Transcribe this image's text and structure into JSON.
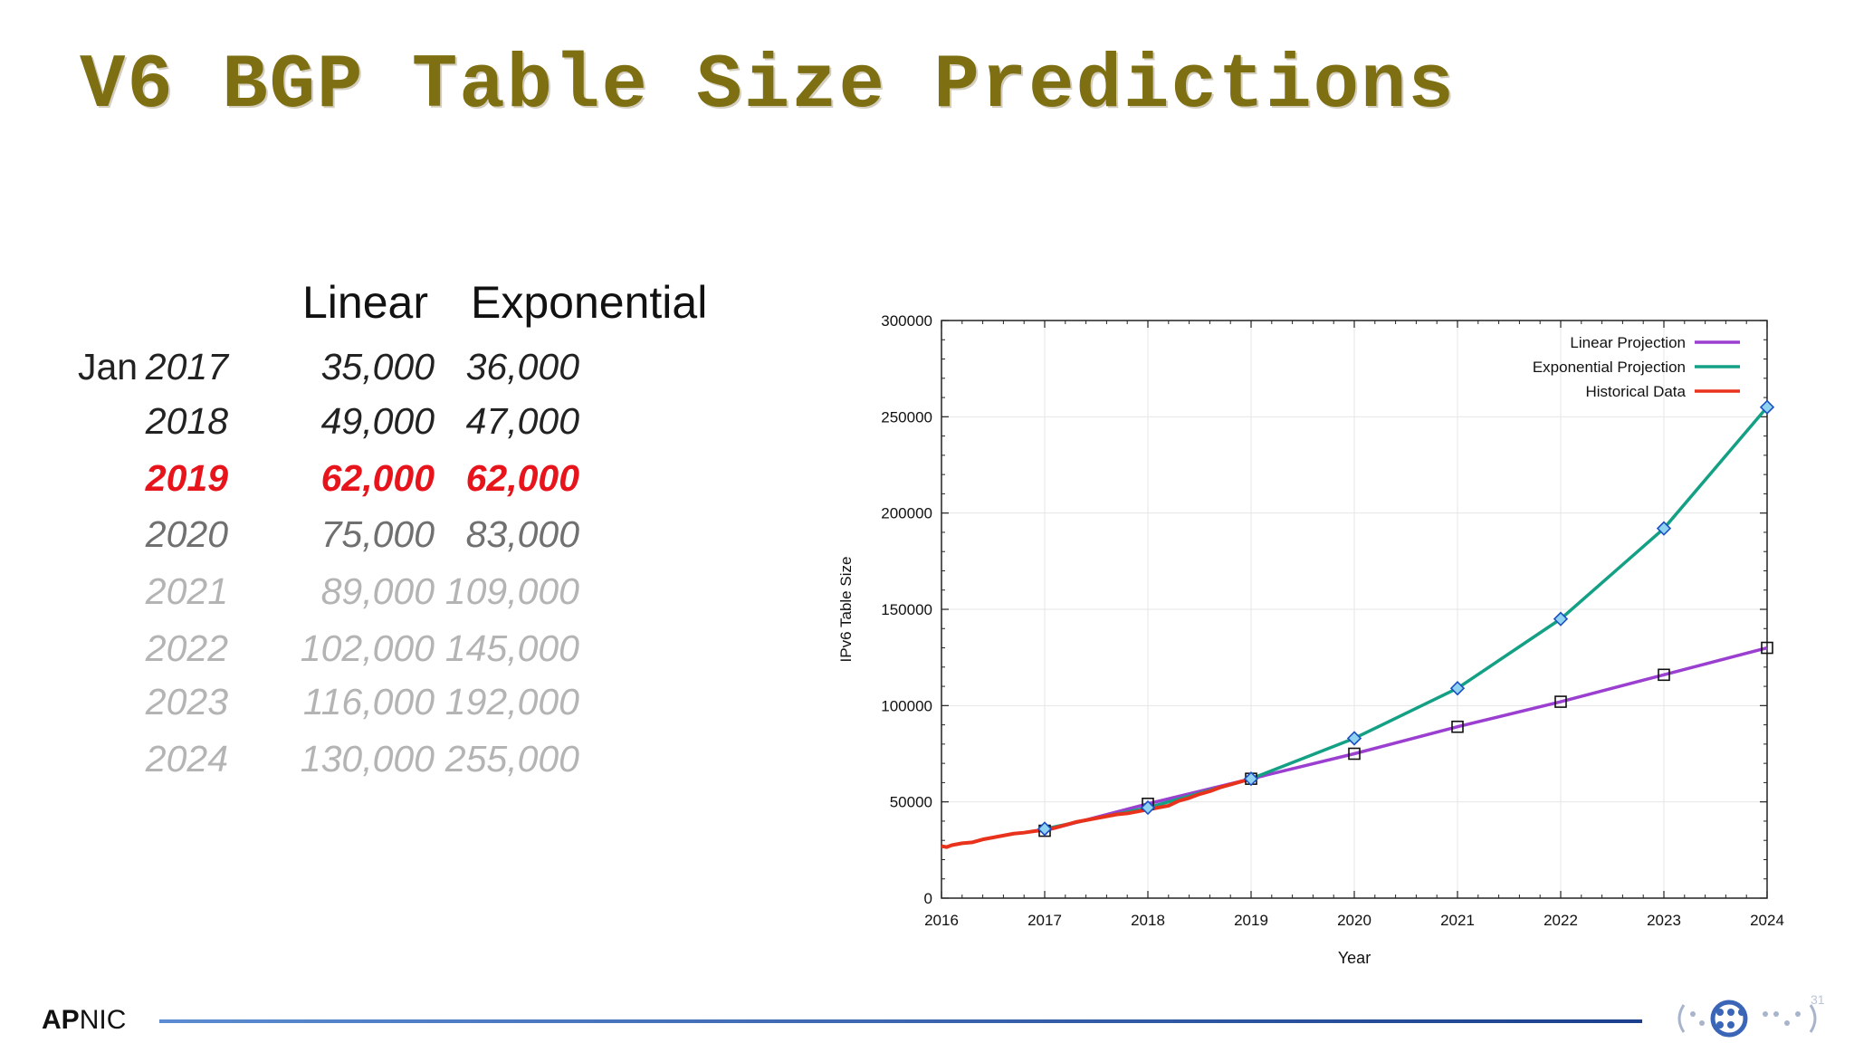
{
  "title": "V6 BGP Table Size Predictions",
  "table": {
    "col_linear": "Linear",
    "col_exponential": "Exponential",
    "first_prefix": "Jan",
    "rows": [
      {
        "year": "2017",
        "linear": "35,000",
        "exponential": "36,000",
        "color": "#222222",
        "bold": false
      },
      {
        "year": "2018",
        "linear": "49,000",
        "exponential": "47,000",
        "color": "#222222",
        "bold": false
      },
      {
        "year": "2019",
        "linear": "62,000",
        "exponential": "62,000",
        "color": "#e8141c",
        "bold": true
      },
      {
        "year": "2020",
        "linear": "75,000",
        "exponential": "83,000",
        "color": "#707070",
        "bold": false
      },
      {
        "year": "2021",
        "linear": "89,000",
        "exponential": "109,000",
        "color": "#b4b4b4",
        "bold": false
      },
      {
        "year": "2022",
        "linear": "102,000",
        "exponential": "145,000",
        "color": "#b4b4b4",
        "bold": false
      },
      {
        "year": "2023",
        "linear": "116,000",
        "exponential": "192,000",
        "color": "#b4b4b4",
        "bold": false
      },
      {
        "year": "2024",
        "linear": "130,000",
        "exponential": "255,000",
        "color": "#b4b4b4",
        "bold": false
      }
    ]
  },
  "chart_data": {
    "type": "line",
    "xlabel": "Year",
    "ylabel": "IPv6 Table Size",
    "xlim": [
      2016,
      2024
    ],
    "ylim": [
      0,
      300000
    ],
    "xticks": [
      "2016",
      "2017",
      "2018",
      "2019",
      "2020",
      "2021",
      "2022",
      "2023",
      "2024"
    ],
    "yticks": [
      "0",
      "50000",
      "100000",
      "150000",
      "200000",
      "250000",
      "300000"
    ],
    "grid": true,
    "legend_position": "top-right",
    "series": [
      {
        "name": "Linear Projection",
        "color": "#9b3fd0",
        "marker": "square",
        "x": [
          2017,
          2018,
          2019,
          2020,
          2021,
          2022,
          2023,
          2024
        ],
        "y": [
          35000,
          49000,
          62000,
          75000,
          89000,
          102000,
          116000,
          130000
        ]
      },
      {
        "name": "Exponential Projection",
        "color": "#14a085",
        "marker": "diamond",
        "x": [
          2017,
          2018,
          2019,
          2020,
          2021,
          2022,
          2023,
          2024
        ],
        "y": [
          36000,
          47000,
          62000,
          83000,
          109000,
          145000,
          192000,
          255000
        ]
      },
      {
        "name": "Historical Data",
        "color": "#e8321c",
        "marker": "none",
        "x": [
          2016.0,
          2016.05,
          2016.1,
          2016.2,
          2016.3,
          2016.4,
          2016.5,
          2016.6,
          2016.7,
          2016.8,
          2016.9,
          2017.0,
          2017.1,
          2017.2,
          2017.3,
          2017.4,
          2017.5,
          2017.6,
          2017.7,
          2017.8,
          2017.9,
          2018.0,
          2018.1,
          2018.2,
          2018.3,
          2018.4,
          2018.5,
          2018.6,
          2018.7,
          2018.8,
          2018.9,
          2019.0
        ],
        "y": [
          27000,
          26500,
          27500,
          28500,
          29000,
          30500,
          31500,
          32500,
          33500,
          34000,
          34800,
          35500,
          36500,
          38000,
          39500,
          40500,
          41500,
          42500,
          43500,
          44000,
          45000,
          46000,
          47000,
          48000,
          50500,
          52000,
          54000,
          55500,
          57500,
          59000,
          60500,
          62000
        ]
      }
    ]
  },
  "footer": {
    "org_bold": "AP",
    "org_rest": "NIC",
    "page_number": "31"
  }
}
